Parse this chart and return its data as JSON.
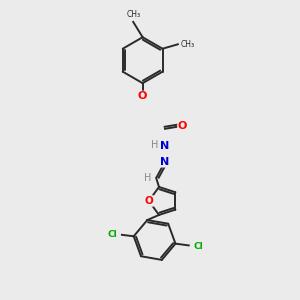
{
  "bg_color": "#ebebeb",
  "bond_color": "#2a2a2a",
  "atom_colors": {
    "O": "#ff0000",
    "N": "#0000cd",
    "Cl": "#00aa00",
    "H": "#888888"
  },
  "figsize": [
    3.0,
    3.0
  ],
  "dpi": 100
}
